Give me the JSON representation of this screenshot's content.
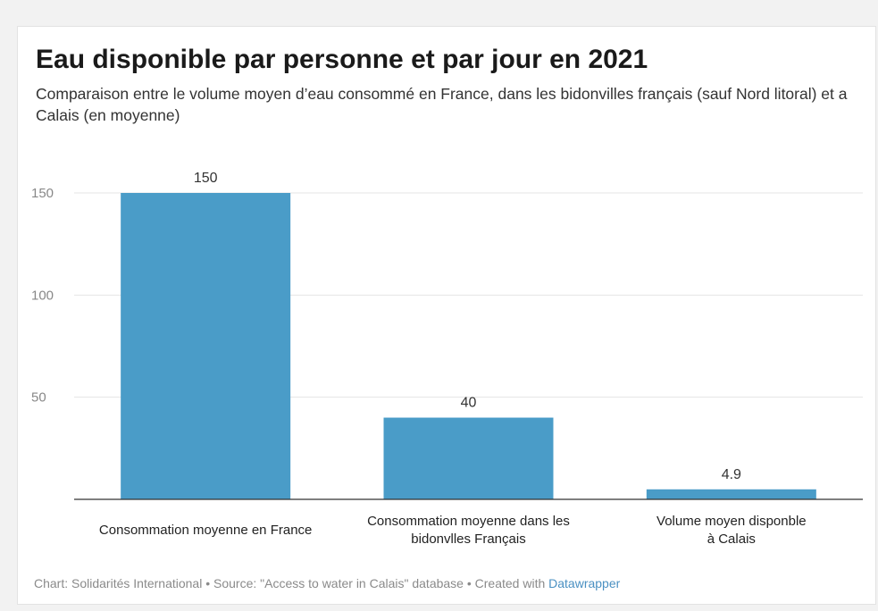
{
  "title": "Eau disponible par personne et par jour en 2021",
  "subtitle": "Comparaison entre le volume moyen d’eau consommé en France, dans les bidonvilles français (sauf Nord litoral) et a Calais (en moyenne)",
  "footer": {
    "prefix": "Chart: Solidarités International • Source: \"Access to water in Calais\" database • Created with ",
    "link": "Datawrapper"
  },
  "colors": {
    "bar": "#4a9cc8",
    "grid": "#e4e4e4",
    "axis": "#333333",
    "tick_label": "#888888"
  },
  "chart_data": {
    "type": "bar",
    "title": "Eau disponible par personne et par jour en 2021",
    "categories": [
      "Consommation moyenne en France",
      "Consommation moyenne dans les bidonvlles Français",
      "Volume moyen disponble à Calais"
    ],
    "category_lines": [
      [
        "Consommation moyenne en France"
      ],
      [
        "Consommation moyenne dans les",
        "bidonvlles Français"
      ],
      [
        "Volume moyen disponble",
        "à Calais"
      ]
    ],
    "values": [
      150,
      40,
      4.9
    ],
    "value_labels": [
      "150",
      "40",
      "4.9"
    ],
    "yticks": [
      50,
      100,
      150
    ],
    "ylim": [
      0,
      150
    ],
    "grid": true,
    "legend": "none"
  }
}
